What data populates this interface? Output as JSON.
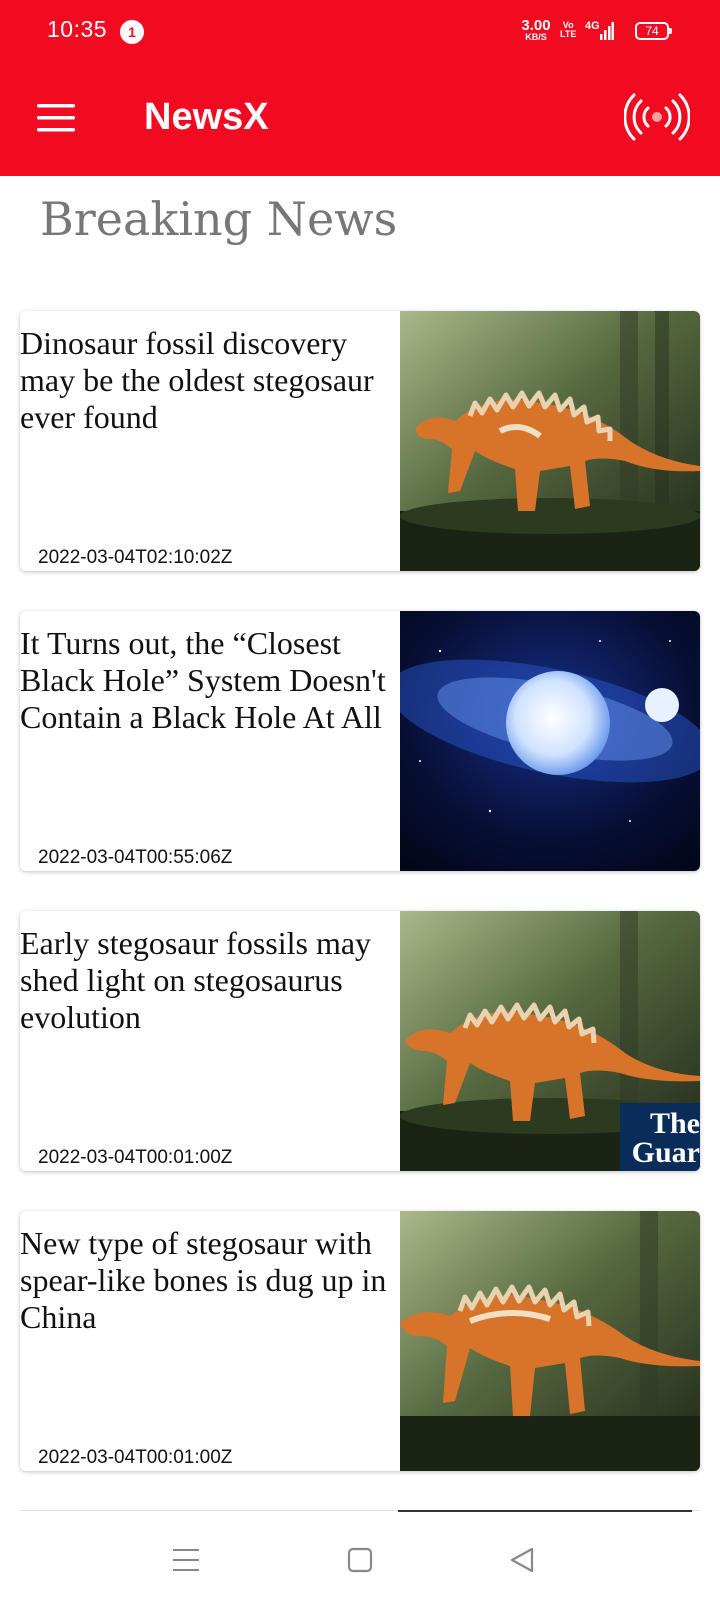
{
  "status_bar": {
    "time": "10:35",
    "notification_count": "1",
    "net_speed_value": "3.00",
    "net_speed_unit": "KB/S",
    "volte_top": "Vo",
    "volte_bottom": "LTE",
    "network_type": "4G",
    "battery_level": "74"
  },
  "app_bar": {
    "title": "NewsX",
    "menu_icon": "hamburger-menu-icon",
    "live_icon": "broadcast-icon",
    "color": "#f10a20"
  },
  "section": {
    "title": "Breaking News"
  },
  "articles": [
    {
      "headline": "Dinosaur fossil discovery may be the oldest stegosaur ever found",
      "date": "2022-03-04T02:10:02Z",
      "image": "stegosaur-illustration"
    },
    {
      "headline": "It Turns out, the “Closest Black Hole” System Doesn't Contain a Black Hole At All",
      "date": "2022-03-04T00:55:06Z",
      "image": "binary-star-system"
    },
    {
      "headline": "Early stegosaur fossils may shed light on stegosaurus evolution",
      "date": "2022-03-04T00:01:00Z",
      "image": "stegosaur-illustration",
      "source_logo_line1": "The",
      "source_logo_line2": "Guar"
    },
    {
      "headline": "New type of stegosaur with spear-like bones is dug up in China",
      "date": "2022-03-04T00:01:00Z",
      "image": "stegosaur-illustration"
    }
  ],
  "nav_bar": {
    "recents_icon": "recents-icon",
    "home_icon": "home-icon",
    "back_icon": "back-icon"
  }
}
